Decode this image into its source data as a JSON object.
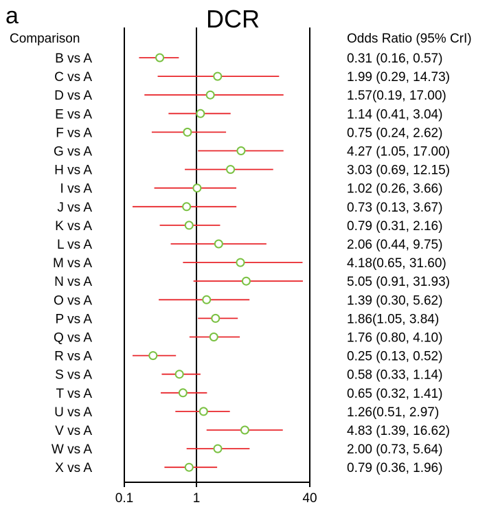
{
  "panel_letter": "a",
  "chart_data": {
    "type": "forest",
    "title": "DCR",
    "label_column_header": "Comparison",
    "value_column_header": "Odds Ratio (95% CrI)",
    "x_scale": "log",
    "xlim": [
      0.1,
      40
    ],
    "x_ticks": [
      {
        "value": 0.1,
        "label": "0.1"
      },
      {
        "value": 1,
        "label": "1"
      },
      {
        "value": 40,
        "label": "40"
      }
    ],
    "reference_line": 1,
    "colors": {
      "ci_line": "#e8262b",
      "point": "#7ac142",
      "axis": "#000000"
    },
    "rows": [
      {
        "label": "B vs A",
        "or": 0.31,
        "lo": 0.16,
        "hi": 0.57,
        "text": "0.31 (0.16, 0.57)"
      },
      {
        "label": "C vs A",
        "or": 1.99,
        "lo": 0.29,
        "hi": 14.73,
        "text": "1.99 (0.29, 14.73)"
      },
      {
        "label": "D vs A",
        "or": 1.57,
        "lo": 0.19,
        "hi": 17.0,
        "text": "1.57(0.19, 17.00)"
      },
      {
        "label": "E vs A",
        "or": 1.14,
        "lo": 0.41,
        "hi": 3.04,
        "text": "1.14 (0.41, 3.04)"
      },
      {
        "label": "F vs A",
        "or": 0.75,
        "lo": 0.24,
        "hi": 2.62,
        "text": "0.75 (0.24, 2.62)"
      },
      {
        "label": "G vs A",
        "or": 4.27,
        "lo": 1.05,
        "hi": 17.0,
        "text": "4.27 (1.05, 17.00)"
      },
      {
        "label": "H vs A",
        "or": 3.03,
        "lo": 0.69,
        "hi": 12.15,
        "text": "3.03 (0.69, 12.15)"
      },
      {
        "label": "I vs A",
        "or": 1.02,
        "lo": 0.26,
        "hi": 3.66,
        "text": "1.02 (0.26, 3.66)"
      },
      {
        "label": "J vs A",
        "or": 0.73,
        "lo": 0.13,
        "hi": 3.67,
        "text": "0.73 (0.13, 3.67)"
      },
      {
        "label": "K vs A",
        "or": 0.79,
        "lo": 0.31,
        "hi": 2.16,
        "text": "0.79 (0.31, 2.16)"
      },
      {
        "label": "L vs A",
        "or": 2.06,
        "lo": 0.44,
        "hi": 9.75,
        "text": "2.06 (0.44, 9.75)"
      },
      {
        "label": "M vs A",
        "or": 4.18,
        "lo": 0.65,
        "hi": 31.6,
        "text": "4.18(0.65,  31.60)"
      },
      {
        "label": "N vs A",
        "or": 5.05,
        "lo": 0.91,
        "hi": 31.93,
        "text": "5.05 (0.91, 31.93)"
      },
      {
        "label": "O vs A",
        "or": 1.39,
        "lo": 0.3,
        "hi": 5.62,
        "text": "1.39 (0.30, 5.62)"
      },
      {
        "label": "P vs A",
        "or": 1.86,
        "lo": 1.05,
        "hi": 3.84,
        "text": "1.86(1.05, 3.84)"
      },
      {
        "label": "Q vs A",
        "or": 1.76,
        "lo": 0.8,
        "hi": 4.1,
        "text": "1.76 (0.80,  4.10)"
      },
      {
        "label": "R vs A",
        "or": 0.25,
        "lo": 0.13,
        "hi": 0.52,
        "text": "0.25 (0.13, 0.52)"
      },
      {
        "label": "S vs A",
        "or": 0.58,
        "lo": 0.33,
        "hi": 1.14,
        "text": "0.58 (0.33, 1.14)"
      },
      {
        "label": "T vs A",
        "or": 0.65,
        "lo": 0.32,
        "hi": 1.41,
        "text": "0.65 (0.32, 1.41)"
      },
      {
        "label": "U vs A",
        "or": 1.26,
        "lo": 0.51,
        "hi": 2.97,
        "text": "1.26(0.51, 2.97)"
      },
      {
        "label": "V vs A",
        "or": 4.83,
        "lo": 1.39,
        "hi": 16.62,
        "text": "4.83 (1.39, 16.62)"
      },
      {
        "label": "W vs A",
        "or": 2.0,
        "lo": 0.73,
        "hi": 5.64,
        "text": "2.00 (0.73, 5.64)"
      },
      {
        "label": "X vs A",
        "or": 0.79,
        "lo": 0.36,
        "hi": 1.96,
        "text": "0.79 (0.36, 1.96)"
      }
    ]
  }
}
